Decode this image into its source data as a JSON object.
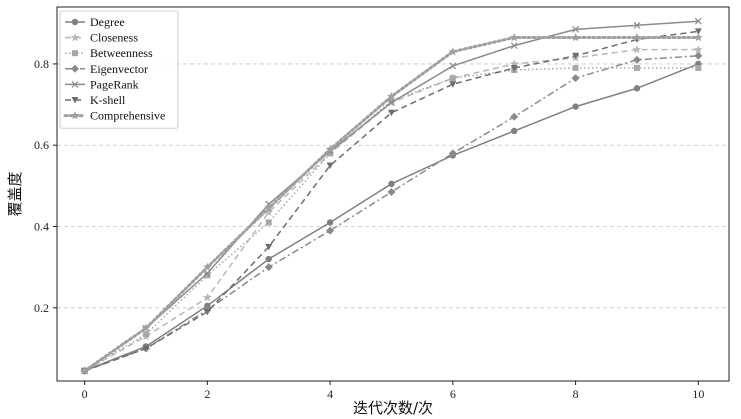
{
  "chart_data": {
    "type": "line",
    "title": "",
    "xlabel": "迭代次数/次",
    "ylabel": "覆盖度",
    "x": [
      0,
      1,
      2,
      3,
      4,
      5,
      6,
      7,
      8,
      9,
      10
    ],
    "xlim": [
      -0.45,
      10.5
    ],
    "ylim": [
      0.02,
      0.94
    ],
    "xticks": [
      "0",
      "2",
      "4",
      "6",
      "8",
      "10"
    ],
    "yticks": [
      "0.2",
      "0.4",
      "0.6",
      "0.8"
    ],
    "grid": "horizontal dashed",
    "legend_position": "top-left",
    "series": [
      {
        "name": "Degree",
        "color": "#808080",
        "dash": "solid",
        "marker": "circle",
        "values": [
          0.045,
          0.105,
          0.205,
          0.32,
          0.41,
          0.505,
          0.575,
          0.635,
          0.695,
          0.74,
          0.8
        ]
      },
      {
        "name": "Closeness",
        "color": "#b8b8b8",
        "dash": "dashed",
        "marker": "star",
        "values": [
          0.045,
          0.13,
          0.225,
          0.435,
          0.58,
          0.705,
          0.765,
          0.8,
          0.815,
          0.835,
          0.835
        ]
      },
      {
        "name": "Betweenness",
        "color": "#a8a8a8",
        "dash": "dotted",
        "marker": "square",
        "values": [
          0.045,
          0.135,
          0.28,
          0.41,
          0.58,
          0.71,
          0.765,
          0.785,
          0.79,
          0.79,
          0.79
        ]
      },
      {
        "name": "Eigenvector",
        "color": "#8a8a8a",
        "dash": "dashdot",
        "marker": "diamond",
        "values": [
          0.045,
          0.1,
          0.195,
          0.3,
          0.39,
          0.485,
          0.58,
          0.67,
          0.765,
          0.81,
          0.82
        ]
      },
      {
        "name": "PageRank",
        "color": "#8c8c8c",
        "dash": "solid",
        "marker": "x",
        "values": [
          0.045,
          0.15,
          0.285,
          0.455,
          0.585,
          0.705,
          0.795,
          0.845,
          0.885,
          0.895,
          0.905
        ]
      },
      {
        "name": "K-shell",
        "color": "#6e6e6e",
        "dash": "dashed",
        "marker": "triangle-down",
        "values": [
          0.045,
          0.1,
          0.19,
          0.35,
          0.55,
          0.68,
          0.75,
          0.79,
          0.82,
          0.86,
          0.88
        ]
      },
      {
        "name": "Comprehensive",
        "color": "#a0a0a0",
        "dash": "dotted-thick",
        "marker": "star",
        "values": [
          0.045,
          0.15,
          0.3,
          0.445,
          0.59,
          0.72,
          0.83,
          0.865,
          0.865,
          0.865,
          0.865
        ]
      }
    ]
  }
}
